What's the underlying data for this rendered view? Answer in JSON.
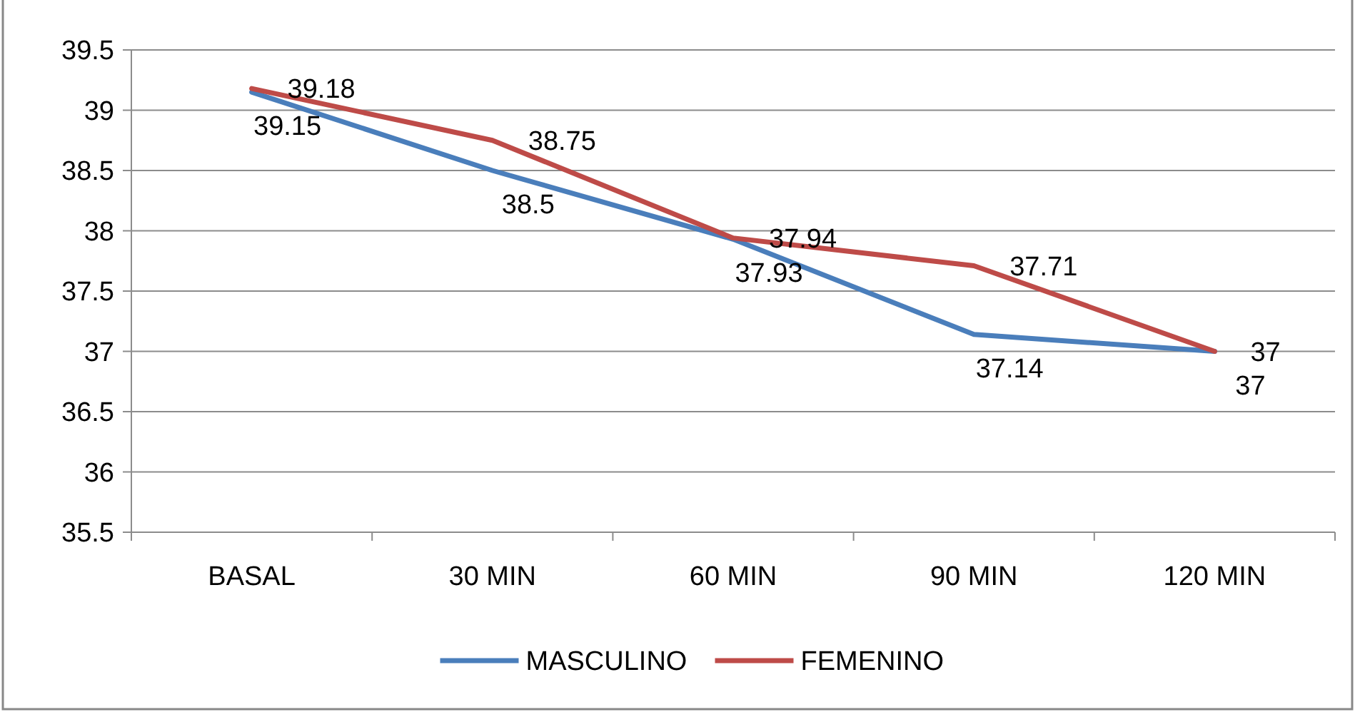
{
  "chart_data": {
    "type": "line",
    "categories": [
      "BASAL",
      "30 MIN",
      "60 MIN",
      "90 MIN",
      "120 MIN"
    ],
    "series": [
      {
        "name": "MASCULINO",
        "color": "#4a7ebb",
        "values": [
          39.15,
          38.5,
          37.93,
          37.14,
          37
        ]
      },
      {
        "name": "FEMENINO",
        "color": "#be4b48",
        "values": [
          39.18,
          38.75,
          37.94,
          37.71,
          37
        ]
      }
    ],
    "ylim": [
      35.5,
      39.5
    ],
    "yticks": [
      35.5,
      36,
      36.5,
      37,
      37.5,
      38,
      38.5,
      39,
      39.5
    ],
    "grid": "y",
    "legend": "bottom",
    "data_labels": true
  }
}
